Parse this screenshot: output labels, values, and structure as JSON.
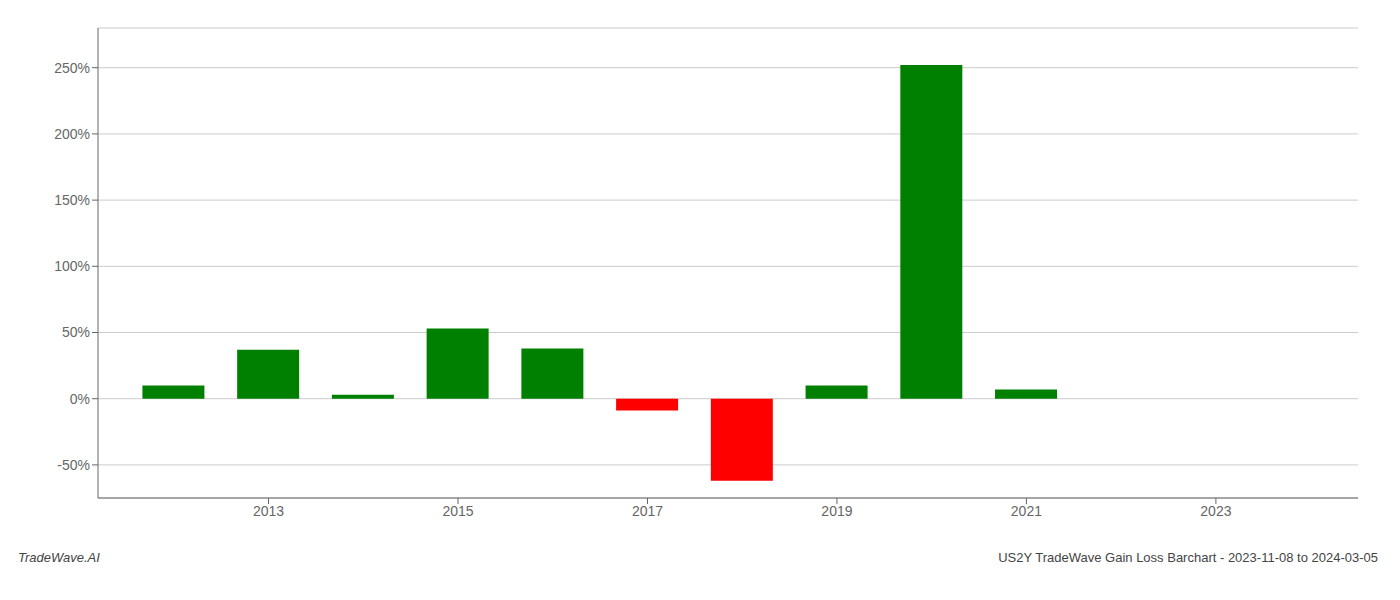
{
  "chart_data": {
    "type": "bar",
    "x": [
      2012,
      2013,
      2014,
      2015,
      2016,
      2017,
      2018,
      2019,
      2020,
      2021,
      2022
    ],
    "values": [
      0.1,
      0.37,
      0.03,
      0.53,
      0.38,
      -0.09,
      -0.62,
      0.1,
      2.52,
      0.07,
      0.0
    ],
    "colors": [
      "#008000",
      "#008000",
      "#008000",
      "#008000",
      "#008000",
      "#ff0000",
      "#ff0000",
      "#008000",
      "#008000",
      "#008000",
      "#008000"
    ],
    "xlim": [
      2011.2,
      2024.5
    ],
    "xticks": [
      2013,
      2015,
      2017,
      2019,
      2021,
      2023
    ],
    "ylim": [
      -0.75,
      2.8
    ],
    "yticks": [
      {
        "value": -0.5,
        "label": "-50%"
      },
      {
        "value": 0.0,
        "label": "0%"
      },
      {
        "value": 0.5,
        "label": "50%"
      },
      {
        "value": 1.0,
        "label": "100%"
      },
      {
        "value": 1.5,
        "label": "150%"
      },
      {
        "value": 2.0,
        "label": "200%"
      },
      {
        "value": 2.5,
        "label": "250%"
      }
    ],
    "grid": true,
    "annotations": [
      "TradeWave.AI",
      "US2Y TradeWave Gain Loss Barchart - 2023-11-08 to 2024-03-05"
    ]
  }
}
